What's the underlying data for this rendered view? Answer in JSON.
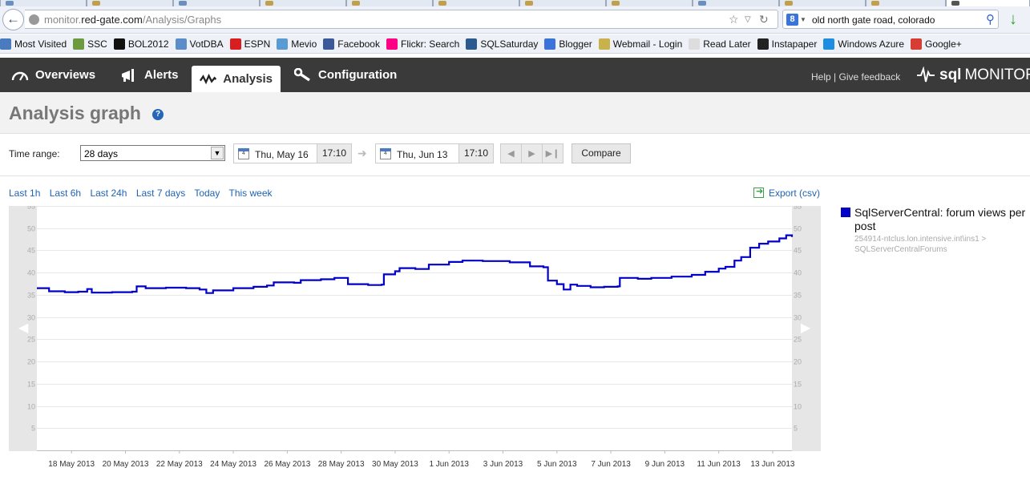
{
  "browser": {
    "url_domain_prefix": "monitor.",
    "url_domain": "red-gate.com",
    "url_path": "/Analysis/Graphs",
    "search_text": "old north gate road, colorado",
    "search_engine_icon": "8"
  },
  "bookmarks": [
    {
      "label": "Most Visited",
      "icon": "gear-icon",
      "color": "#4b7bbf"
    },
    {
      "label": "SSC",
      "icon": "cube-icon",
      "color": "#6c9b3f"
    },
    {
      "label": "BOL2012",
      "icon": "m-icon",
      "color": "#111111"
    },
    {
      "label": "VotDBA",
      "icon": "wordpress-icon",
      "color": "#5b8ec9"
    },
    {
      "label": "ESPN",
      "icon": "espn-icon",
      "color": "#d81e1e"
    },
    {
      "label": "Mevio",
      "icon": "mevio-icon",
      "color": "#5a9bd3"
    },
    {
      "label": "Facebook",
      "icon": "facebook-icon",
      "color": "#3b5998"
    },
    {
      "label": "Flickr: Search",
      "icon": "flickr-icon",
      "color": "#ff0084"
    },
    {
      "label": "SQLSaturday",
      "icon": "sqlsaturday-icon",
      "color": "#2b5a8f"
    },
    {
      "label": "Blogger",
      "icon": "google-icon",
      "color": "#3a73d9"
    },
    {
      "label": "Webmail - Login",
      "icon": "mail-icon",
      "color": "#c9b14b"
    },
    {
      "label": "Read Later",
      "icon": "bookmark-icon",
      "color": "#dddddd"
    },
    {
      "label": "Instapaper",
      "icon": "instapaper-icon",
      "color": "#222222"
    },
    {
      "label": "Windows Azure",
      "icon": "windows-icon",
      "color": "#1f8ee0"
    },
    {
      "label": "Google+",
      "icon": "googleplus-icon",
      "color": "#d73d32"
    }
  ],
  "nav": {
    "tabs": [
      {
        "label": "Overviews",
        "icon": "gauge-icon",
        "active": false
      },
      {
        "label": "Alerts",
        "icon": "megaphone-icon",
        "active": false
      },
      {
        "label": "Analysis",
        "icon": "pulse-icon",
        "active": true
      },
      {
        "label": "Configuration",
        "icon": "wrench-icon",
        "active": false
      }
    ],
    "help": "Help",
    "separator": " | ",
    "feedback": "Give feedback",
    "brand_bold": "sql",
    "brand_rest": "MONITOR"
  },
  "page": {
    "title": "Analysis graph",
    "help_icon": "?"
  },
  "controls": {
    "time_range_label": "Time range:",
    "time_range_value": "28 days",
    "start_date": "Thu, May 16",
    "start_time": "17:10",
    "end_date": "Thu, Jun 13",
    "end_time": "17:10",
    "calendar_day": "4",
    "compare_label": "Compare"
  },
  "quick_ranges": [
    "Last 1h",
    "Last 6h",
    "Last 24h",
    "Last 7 days",
    "Today",
    "This week"
  ],
  "export_label": "Export (csv)",
  "legend": {
    "series_name": "SqlServerCentral: forum views per post",
    "series_path": "254914-ntclus.lon.intensive.int\\ins1 > SQLServerCentralForums",
    "color": "#0000c8"
  },
  "chart_data": {
    "type": "line",
    "x_axis": "date",
    "x_tick_labels": [
      "18 May 2013",
      "20 May 2013",
      "22 May 2013",
      "24 May 2013",
      "26 May 2013",
      "28 May 2013",
      "30 May 2013",
      "1 Jun 2013",
      "3 Jun 2013",
      "5 Jun 2013",
      "7 Jun 2013",
      "9 Jun 2013",
      "11 Jun 2013",
      "13 Jun 2013"
    ],
    "x_range": [
      "2013-05-16 17:10",
      "2013-06-13 17:10"
    ],
    "ylim": [
      0,
      55
    ],
    "y_ticks": [
      5,
      10,
      15,
      20,
      25,
      30,
      35,
      40,
      45,
      50,
      55
    ],
    "grid": true,
    "series": [
      {
        "name": "SqlServerCentral: forum views per post",
        "color": "#0000c8",
        "points": [
          [
            "2013-05-16 17:10",
            36.5
          ],
          [
            "2013-05-17 00:00",
            36.5
          ],
          [
            "2013-05-17 04:00",
            35.8
          ],
          [
            "2013-05-17 18:00",
            35.6
          ],
          [
            "2013-05-18 06:00",
            35.7
          ],
          [
            "2013-05-18 14:00",
            36.3
          ],
          [
            "2013-05-18 18:00",
            35.5
          ],
          [
            "2013-05-19 12:00",
            35.6
          ],
          [
            "2013-05-20 06:00",
            35.7
          ],
          [
            "2013-05-20 10:00",
            36.9
          ],
          [
            "2013-05-20 18:00",
            36.5
          ],
          [
            "2013-05-21 12:00",
            36.6
          ],
          [
            "2013-05-22 06:00",
            36.5
          ],
          [
            "2013-05-22 18:00",
            36.2
          ],
          [
            "2013-05-23 00:00",
            35.4
          ],
          [
            "2013-05-23 06:00",
            36.0
          ],
          [
            "2013-05-24 00:00",
            36.5
          ],
          [
            "2013-05-24 18:00",
            36.8
          ],
          [
            "2013-05-25 06:00",
            37.1
          ],
          [
            "2013-05-25 12:00",
            37.8
          ],
          [
            "2013-05-26 06:00",
            37.7
          ],
          [
            "2013-05-26 12:00",
            38.3
          ],
          [
            "2013-05-27 06:00",
            38.5
          ],
          [
            "2013-05-27 18:00",
            38.8
          ],
          [
            "2013-05-28 06:00",
            37.4
          ],
          [
            "2013-05-29 00:00",
            37.2
          ],
          [
            "2013-05-29 12:00",
            37.3
          ],
          [
            "2013-05-29 14:00",
            39.6
          ],
          [
            "2013-05-30 00:00",
            40.3
          ],
          [
            "2013-05-30 04:00",
            41.0
          ],
          [
            "2013-05-30 18:00",
            40.8
          ],
          [
            "2013-05-31 06:00",
            41.8
          ],
          [
            "2013-06-01 00:00",
            42.4
          ],
          [
            "2013-06-01 12:00",
            42.7
          ],
          [
            "2013-06-02 06:00",
            42.6
          ],
          [
            "2013-06-03 06:00",
            42.3
          ],
          [
            "2013-06-03 18:00",
            42.3
          ],
          [
            "2013-06-04 00:00",
            41.4
          ],
          [
            "2013-06-04 12:00",
            41.2
          ],
          [
            "2013-06-04 16:00",
            38.2
          ],
          [
            "2013-06-05 00:00",
            37.4
          ],
          [
            "2013-06-05 06:00",
            36.2
          ],
          [
            "2013-06-05 12:00",
            37.3
          ],
          [
            "2013-06-05 18:00",
            37.0
          ],
          [
            "2013-06-06 06:00",
            36.7
          ],
          [
            "2013-06-06 18:00",
            36.8
          ],
          [
            "2013-06-07 06:00",
            36.9
          ],
          [
            "2013-06-07 08:00",
            38.8
          ],
          [
            "2013-06-08 00:00",
            38.6
          ],
          [
            "2013-06-08 12:00",
            38.8
          ],
          [
            "2013-06-09 06:00",
            39.1
          ],
          [
            "2013-06-10 00:00",
            39.5
          ],
          [
            "2013-06-10 12:00",
            40.2
          ],
          [
            "2013-06-11 00:00",
            40.9
          ],
          [
            "2013-06-11 06:00",
            41.3
          ],
          [
            "2013-06-11 14:00",
            42.7
          ],
          [
            "2013-06-11 20:00",
            43.5
          ],
          [
            "2013-06-12 04:00",
            45.6
          ],
          [
            "2013-06-12 12:00",
            46.5
          ],
          [
            "2013-06-12 20:00",
            47.0
          ],
          [
            "2013-06-13 06:00",
            47.7
          ],
          [
            "2013-06-13 12:00",
            48.4
          ],
          [
            "2013-06-13 17:10",
            48.0
          ]
        ]
      }
    ]
  }
}
